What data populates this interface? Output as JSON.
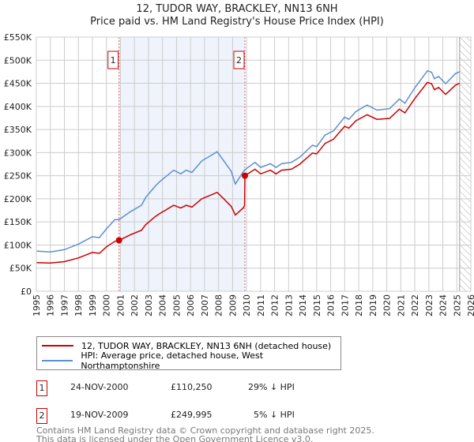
{
  "chart_data": {
    "type": "line",
    "title": "12, TUDOR WAY, BRACKLEY, NN13 6NH",
    "subtitle": "Price paid vs. HM Land Registry's House Price Index (HPI)",
    "xlim": [
      1995,
      2026
    ],
    "ylim": [
      0,
      550000
    ],
    "x_ticks": [
      1995,
      1996,
      1997,
      1998,
      1999,
      2000,
      2001,
      2002,
      2003,
      2004,
      2005,
      2006,
      2007,
      2008,
      2009,
      2010,
      2011,
      2012,
      2013,
      2014,
      2015,
      2016,
      2017,
      2018,
      2019,
      2020,
      2021,
      2022,
      2023,
      2024,
      2025,
      2026
    ],
    "y_ticks": [
      {
        "v": 0,
        "label": "£0"
      },
      {
        "v": 50000,
        "label": "£50K"
      },
      {
        "v": 100000,
        "label": "£100K"
      },
      {
        "v": 150000,
        "label": "£150K"
      },
      {
        "v": 200000,
        "label": "£200K"
      },
      {
        "v": 250000,
        "label": "£250K"
      },
      {
        "v": 300000,
        "label": "£300K"
      },
      {
        "v": 350000,
        "label": "£350K"
      },
      {
        "v": 400000,
        "label": "£400K"
      },
      {
        "v": 450000,
        "label": "£450K"
      },
      {
        "v": 500000,
        "label": "£500K"
      },
      {
        "v": 550000,
        "label": "£550K"
      }
    ],
    "grid": true,
    "shaded_period": [
      2000.9,
      2009.88
    ],
    "forecast_hatch_from": 2025.2,
    "series": [
      {
        "name": "12, TUDOR WAY, BRACKLEY, NN13 6NH (detached house)",
        "color": "#cc0000",
        "x": [
          1995.0,
          1996.0,
          1997.0,
          1998.0,
          1999.0,
          1999.5,
          2000.0,
          2000.6,
          2000.9,
          2001.7,
          2002.5,
          2002.8,
          2003.5,
          2003.8,
          2004.8,
          2005.3,
          2005.7,
          2006.1,
          2006.8,
          2007.9,
          2008.3,
          2008.9,
          2009.2,
          2009.75,
          2009.86,
          2009.88,
          2010.6,
          2011.0,
          2011.7,
          2012.1,
          2012.5,
          2013.2,
          2013.8,
          2014.7,
          2015.0,
          2015.6,
          2016.2,
          2017.0,
          2017.3,
          2017.8,
          2018.6,
          2019.3,
          2020.2,
          2020.9,
          2021.3,
          2022.0,
          2022.9,
          2023.2,
          2023.4,
          2023.7,
          2024.2,
          2024.9,
          2025.2
        ],
        "y": [
          62000,
          61000,
          64000,
          72000,
          84000,
          82000,
          96000,
          108000,
          110250,
          122000,
          132000,
          144000,
          162000,
          168000,
          186000,
          180000,
          186000,
          182000,
          200000,
          214000,
          202000,
          184000,
          165000,
          180000,
          185000,
          249995,
          264000,
          254000,
          262000,
          254000,
          262000,
          264000,
          275000,
          299000,
          297000,
          320000,
          329000,
          357000,
          353000,
          369000,
          382000,
          372000,
          374000,
          394000,
          386000,
          417000,
          452000,
          449000,
          436000,
          441000,
          426000,
          446000,
          450000
        ]
      },
      {
        "name": "HPI: Average price, detached house, West Northamptonshire",
        "color": "#5b8fd0",
        "x": [
          1995.0,
          1996.0,
          1997.0,
          1998.0,
          1999.0,
          1999.5,
          2000.0,
          2000.6,
          2000.9,
          2001.7,
          2002.5,
          2002.8,
          2003.5,
          2003.8,
          2004.8,
          2005.3,
          2005.7,
          2006.1,
          2006.8,
          2007.9,
          2008.3,
          2008.9,
          2009.2,
          2009.75,
          2009.88,
          2010.6,
          2011.0,
          2011.7,
          2012.1,
          2012.5,
          2013.2,
          2013.8,
          2014.7,
          2015.0,
          2015.6,
          2016.2,
          2017.0,
          2017.3,
          2017.8,
          2018.6,
          2019.3,
          2020.2,
          2020.9,
          2021.3,
          2022.0,
          2022.9,
          2023.2,
          2023.4,
          2023.7,
          2024.2,
          2024.9,
          2025.2
        ],
        "y": [
          87000,
          85000,
          90000,
          102000,
          118000,
          116000,
          135000,
          155000,
          155000,
          172000,
          186000,
          203000,
          228000,
          237000,
          262000,
          254000,
          262000,
          257000,
          282000,
          302000,
          285000,
          260000,
          232000,
          258000,
          263000,
          279000,
          268000,
          276000,
          268000,
          276000,
          279000,
          290000,
          316000,
          313000,
          338000,
          347000,
          377000,
          372000,
          389000,
          403000,
          392000,
          395000,
          416000,
          407000,
          440000,
          477000,
          474000,
          460000,
          465000,
          449000,
          471000,
          475000
        ]
      }
    ],
    "sales": [
      {
        "label": "1",
        "x": 2000.9,
        "y": 110250
      },
      {
        "label": "2",
        "x": 2009.88,
        "y": 249995
      }
    ]
  },
  "legend": {
    "red": "12, TUDOR WAY, BRACKLEY, NN13 6NH (detached house)",
    "blue": "HPI: Average price, detached house, West Northamptonshire"
  },
  "transactions": [
    {
      "n": "1",
      "date": "24-NOV-2000",
      "price": "£110,250",
      "diff": "29% ↓ HPI"
    },
    {
      "n": "2",
      "date": "19-NOV-2009",
      "price": "£249,995",
      "diff": "5% ↓ HPI"
    }
  ],
  "footer": {
    "line1": "Contains HM Land Registry data © Crown copyright and database right 2025.",
    "line2": "This data is licensed under the Open Government Licence v3.0."
  }
}
